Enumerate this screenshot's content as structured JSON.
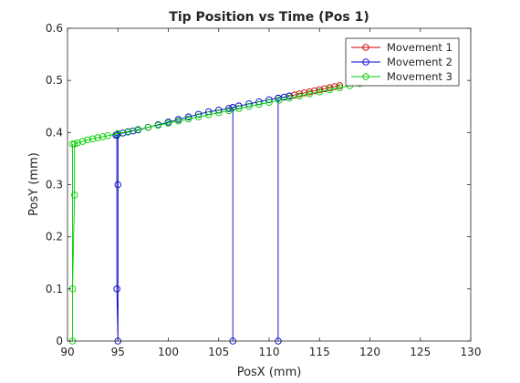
{
  "chart_data": {
    "type": "line",
    "title": "Tip Position vs Time (Pos 1)",
    "xlabel": "PosX (mm)",
    "ylabel": "PosY (mm)",
    "xlim": [
      90,
      130
    ],
    "ylim": [
      0,
      0.6
    ],
    "xticks": [
      90,
      95,
      100,
      105,
      110,
      115,
      120,
      125,
      130
    ],
    "yticks": [
      0,
      0.1,
      0.2,
      0.3,
      0.4,
      0.5,
      0.6
    ],
    "grid": false,
    "legend_position": "top-right",
    "marker": "circle",
    "series": [
      {
        "name": "Movement 1",
        "color": "#cc0000",
        "x": [
          112.0,
          112.5,
          113.0,
          113.5,
          114.0,
          114.5,
          115.0,
          115.5,
          116.0,
          116.5,
          117.0
        ],
        "y": [
          0.47,
          0.472,
          0.474,
          0.476,
          0.478,
          0.48,
          0.482,
          0.484,
          0.486,
          0.488,
          0.49
        ]
      },
      {
        "name": "Movement 2",
        "color": "#0000cc",
        "x": [
          94.8,
          94.9,
          94.9,
          95.0,
          95.0,
          95.0,
          95.5,
          96.0,
          96.5,
          97.0,
          98.0,
          99.0,
          100.0,
          101.0,
          102.0,
          103.0,
          104.0,
          105.0,
          106.0,
          106.4,
          106.4,
          106.4,
          107.0,
          108.0,
          109.0,
          110.0,
          110.9,
          110.9,
          110.9,
          111.5,
          112.0
        ],
        "y": [
          0.395,
          0.395,
          0.1,
          0.0,
          0.3,
          0.397,
          0.399,
          0.401,
          0.403,
          0.405,
          0.41,
          0.415,
          0.42,
          0.425,
          0.43,
          0.435,
          0.44,
          0.443,
          0.446,
          0.448,
          0.0,
          0.448,
          0.451,
          0.455,
          0.459,
          0.463,
          0.466,
          0.0,
          0.466,
          0.468,
          0.47
        ]
      },
      {
        "name": "Movement 3",
        "color": "#00cc00",
        "x": [
          90.5,
          90.5,
          90.5,
          90.7,
          90.7,
          91.0,
          91.5,
          92.0,
          92.5,
          93.0,
          93.5,
          94.0,
          95.0,
          96.0,
          97.0,
          98.0,
          99.0,
          100.0,
          101.0,
          102.0,
          103.0,
          104.0,
          105.0,
          106.0,
          107.0,
          108.0,
          109.0,
          110.0,
          111.0,
          112.0,
          113.0,
          114.0,
          115.0,
          116.0,
          117.0,
          118.0,
          119.0,
          120.0,
          121.0,
          122.0
        ],
        "y": [
          0.378,
          0.0,
          0.1,
          0.28,
          0.378,
          0.38,
          0.383,
          0.386,
          0.388,
          0.39,
          0.392,
          0.394,
          0.398,
          0.402,
          0.406,
          0.41,
          0.414,
          0.418,
          0.422,
          0.426,
          0.43,
          0.434,
          0.438,
          0.442,
          0.446,
          0.45,
          0.454,
          0.458,
          0.462,
          0.466,
          0.47,
          0.474,
          0.478,
          0.482,
          0.486,
          0.49,
          0.494,
          0.498,
          0.5,
          0.502
        ]
      }
    ]
  }
}
